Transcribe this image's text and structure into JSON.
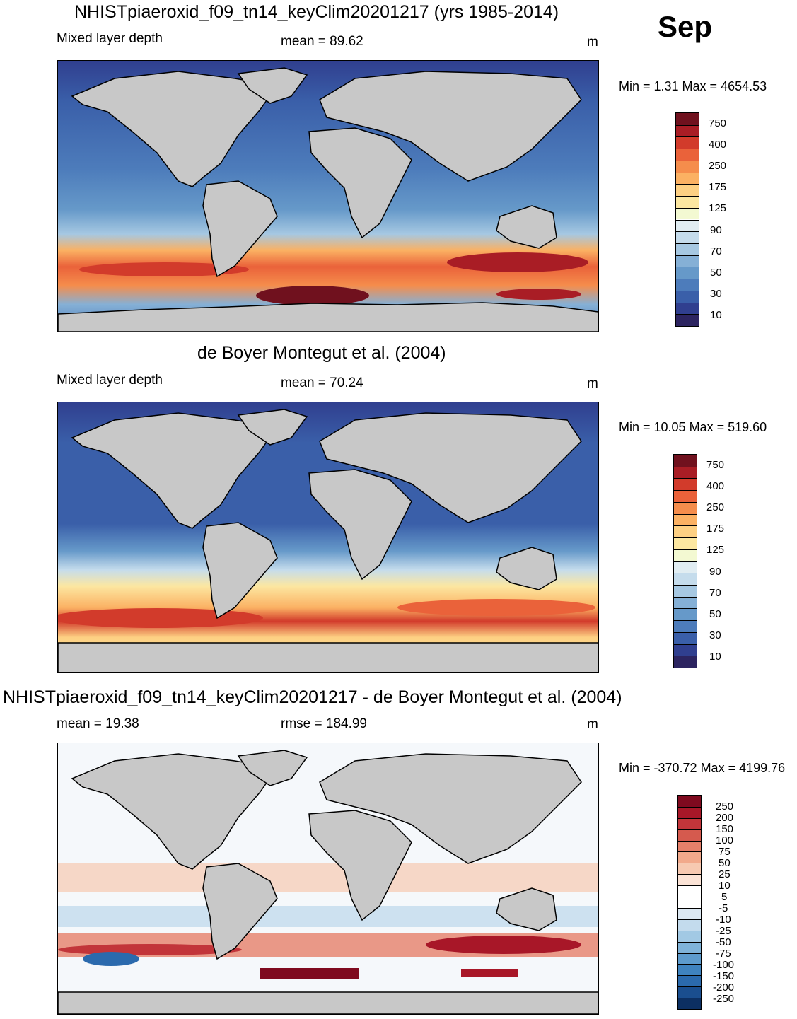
{
  "month": "Sep",
  "units": "m",
  "colors": {
    "land": "#c8c8c8",
    "coast": "#000000",
    "mld_palette": [
      "#2c2460",
      "#303f8f",
      "#3a5fa9",
      "#4d7cbb",
      "#6699c9",
      "#85b0d6",
      "#a6c8e2",
      "#c5dcec",
      "#e1edf2",
      "#f3f9d2",
      "#fce7a1",
      "#fdd083",
      "#fbb163",
      "#f58d4c",
      "#ea623a",
      "#d23b2b",
      "#a91d25",
      "#70111e"
    ],
    "diff_palette": [
      "#0c2f62",
      "#1a4e8f",
      "#2b6aad",
      "#3f83bf",
      "#5d9bcd",
      "#7fb3d9",
      "#a2c9e4",
      "#c3dbed",
      "#dde9f3",
      "#ffffff",
      "#ffffff",
      "#fbe3d6",
      "#f7c9b1",
      "#f2a98b",
      "#e6806a",
      "#d55a4e",
      "#c2353a",
      "#a81728",
      "#7f0a1f"
    ]
  },
  "panels": [
    {
      "title": "NHISTpiaeroxid_f09_tn14_keyClim20201217 (yrs 1985-2014)",
      "left_label": "Mixed layer depth",
      "center_label": "mean =  89.62",
      "units": "m",
      "minmax": "Min =    1.31 Max = 4654.53",
      "colorbar_labels": [
        "750",
        "400",
        "250",
        "175",
        "125",
        "90",
        "70",
        "50",
        "30",
        "10"
      ]
    },
    {
      "title": "de Boyer Montegut et al. (2004)",
      "left_label": "Mixed layer depth",
      "center_label": "mean =  70.24",
      "units": "m",
      "minmax": "Min =  10.05 Max = 519.60",
      "colorbar_labels": [
        "750",
        "400",
        "250",
        "175",
        "125",
        "90",
        "70",
        "50",
        "30",
        "10"
      ]
    },
    {
      "title": "NHISTpiaeroxid_f09_tn14_keyClim20201217 - de Boyer Montegut et al. (2004)",
      "left_label": "mean =  19.38",
      "center_label": "rmse = 184.99",
      "units": "m",
      "minmax": "Min = -370.72 Max = 4199.76",
      "colorbar_labels": [
        "250",
        "200",
        "150",
        "100",
        "75",
        "50",
        "25",
        "10",
        "5",
        "-5",
        "-10",
        "-25",
        "-50",
        "-75",
        "-100",
        "-150",
        "-200",
        "-250"
      ]
    }
  ]
}
